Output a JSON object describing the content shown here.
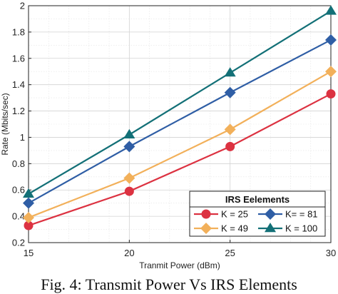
{
  "chart_data": {
    "type": "line",
    "title": "",
    "xlabel": "Tranmit Power (dBm)",
    "ylabel": "Rate (Mbits/sec)",
    "x": [
      15,
      20,
      25,
      30
    ],
    "xlim": [
      15,
      30
    ],
    "ylim": [
      0.2,
      2.0
    ],
    "x_ticks": [
      "15",
      "20",
      "25",
      "30"
    ],
    "y_ticks": [
      "0.2",
      "0.4",
      "0.6",
      "0.8",
      "1",
      "1.2",
      "1.4",
      "1.6",
      "1.8",
      "2"
    ],
    "grid": true,
    "legend": {
      "title": "IRS Eelements",
      "placement": "bottom-right",
      "columns": 2
    },
    "series": [
      {
        "name": "K = 25",
        "values": [
          0.33,
          0.59,
          0.93,
          1.33
        ],
        "color": "#dc3241",
        "marker": "circle"
      },
      {
        "name": "K = 49",
        "values": [
          0.39,
          0.69,
          1.06,
          1.5
        ],
        "color": "#f2b05a",
        "marker": "diamond"
      },
      {
        "name": "K= = 81",
        "values": [
          0.5,
          0.93,
          1.34,
          1.74
        ],
        "color": "#2f5ea5",
        "marker": "diamond"
      },
      {
        "name": "K = 100",
        "values": [
          0.57,
          1.02,
          1.49,
          1.96
        ],
        "color": "#137077",
        "marker": "triangle"
      }
    ]
  },
  "caption": "Fig. 4: Transmit Power Vs IRS Elements"
}
